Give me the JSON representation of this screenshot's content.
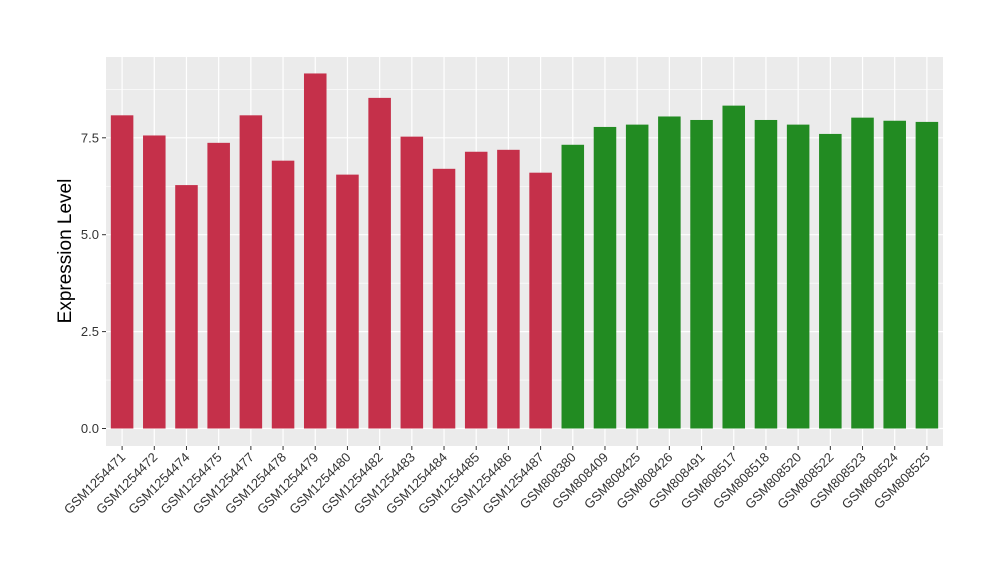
{
  "chart_data": {
    "type": "bar",
    "ylabel": "Expression Level",
    "xlabel": "",
    "title": "",
    "ylim": [
      0,
      9.4
    ],
    "yticks": [
      0.0,
      2.5,
      5.0,
      7.5
    ],
    "ytick_labels": [
      "0.0",
      "2.5",
      "5.0",
      "7.5"
    ],
    "grid": true,
    "colors": {
      "group_a": "#c5304a",
      "group_b": "#228b22",
      "panel": "#ebebeb",
      "grid": "#ffffff"
    },
    "categories": [
      "GSM1254471",
      "GSM1254472",
      "GSM1254474",
      "GSM1254475",
      "GSM1254477",
      "GSM1254478",
      "GSM1254479",
      "GSM1254480",
      "GSM1254482",
      "GSM1254483",
      "GSM1254484",
      "GSM1254485",
      "GSM1254486",
      "GSM1254487",
      "GSM808380",
      "GSM808409",
      "GSM808425",
      "GSM808426",
      "GSM808491",
      "GSM808517",
      "GSM808518",
      "GSM808520",
      "GSM808522",
      "GSM808523",
      "GSM808524",
      "GSM808525"
    ],
    "values": [
      8.08,
      7.56,
      6.28,
      7.37,
      8.08,
      6.91,
      9.16,
      6.55,
      8.53,
      7.53,
      6.7,
      7.14,
      7.19,
      6.6,
      7.32,
      7.78,
      7.84,
      8.05,
      7.96,
      8.33,
      7.96,
      7.84,
      7.6,
      8.02,
      7.94,
      7.91
    ],
    "groups": [
      "group_a",
      "group_a",
      "group_a",
      "group_a",
      "group_a",
      "group_a",
      "group_a",
      "group_a",
      "group_a",
      "group_a",
      "group_a",
      "group_a",
      "group_a",
      "group_a",
      "group_b",
      "group_b",
      "group_b",
      "group_b",
      "group_b",
      "group_b",
      "group_b",
      "group_b",
      "group_b",
      "group_b",
      "group_b",
      "group_b"
    ]
  }
}
